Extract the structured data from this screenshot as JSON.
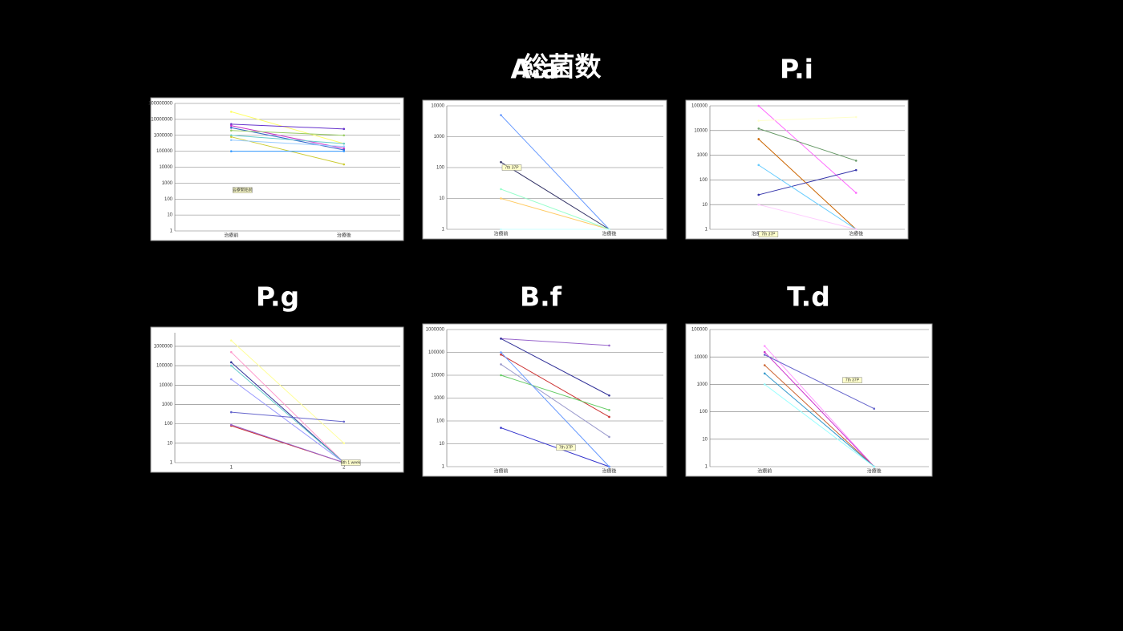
{
  "chart_data": [
    {
      "type": "line",
      "title": "総菌数",
      "log_scale": true,
      "grid": true,
      "categories": [
        "治療前",
        "治療後"
      ],
      "ylim": [
        1,
        100000000
      ],
      "yticks": [
        1,
        10,
        100,
        1000,
        10000,
        100000,
        1000000,
        10000000,
        100000000
      ],
      "annotation": "治療開始前",
      "series": [
        {
          "color": "#ffff66",
          "values": [
            30000000,
            300000
          ]
        },
        {
          "color": "#6633cc",
          "values": [
            5000000,
            2500000
          ]
        },
        {
          "color": "#cc33cc",
          "values": [
            4000000,
            150000
          ]
        },
        {
          "color": "#3366cc",
          "values": [
            3000000,
            120000
          ]
        },
        {
          "color": "#66cccc",
          "values": [
            1000000,
            300000
          ]
        },
        {
          "color": "#cccc33",
          "values": [
            800000,
            15000
          ]
        },
        {
          "color": "#99ccff",
          "values": [
            500000,
            200000
          ]
        },
        {
          "color": "#99cc66",
          "values": [
            2000000,
            1000000
          ]
        },
        {
          "color": "#3399ff",
          "values": [
            100000,
            100000
          ]
        }
      ]
    },
    {
      "type": "line",
      "title": "A.a",
      "log_scale": true,
      "grid": true,
      "categories": [
        "治療前",
        "治療後"
      ],
      "ylim": [
        1,
        10000
      ],
      "yticks": [
        1,
        10,
        100,
        1000,
        10000
      ],
      "annotation": "7th 37P",
      "series": [
        {
          "color": "#6699ff",
          "values": [
            5000,
            1
          ]
        },
        {
          "color": "#333366",
          "values": [
            150,
            1
          ]
        },
        {
          "color": "#ffcc66",
          "values": [
            10,
            1
          ]
        },
        {
          "color": "#99ffcc",
          "values": [
            20,
            1
          ]
        },
        {
          "color": "#ccffff",
          "values": [
            1,
            1
          ]
        }
      ]
    },
    {
      "type": "line",
      "title": "P.i",
      "log_scale": true,
      "grid": true,
      "categories": [
        "治療前",
        "治療後"
      ],
      "ylim": [
        1,
        100000
      ],
      "yticks": [
        1,
        10,
        100,
        1000,
        10000,
        100000
      ],
      "annotation": "7th 37P",
      "series": [
        {
          "color": "#ff66ff",
          "values": [
            100000,
            30
          ]
        },
        {
          "color": "#669966",
          "values": [
            12000,
            600
          ]
        },
        {
          "color": "#cc6600",
          "values": [
            4500,
            1
          ]
        },
        {
          "color": "#3333aa",
          "values": [
            25,
            250
          ]
        },
        {
          "color": "#66ccff",
          "values": [
            400,
            1
          ]
        },
        {
          "color": "#ffccff",
          "values": [
            10,
            1
          ]
        },
        {
          "color": "#ffffcc",
          "values": [
            25000,
            35000
          ]
        }
      ]
    },
    {
      "type": "line",
      "title": "P.g",
      "log_scale": true,
      "grid": true,
      "categories": [
        "1",
        "2"
      ],
      "ylim": [
        1,
        5000000
      ],
      "yticks": [
        1,
        10,
        100,
        1000,
        10000,
        100000,
        1000000
      ],
      "annotation": "8th 1 week",
      "series": [
        {
          "color": "#ffff99",
          "values": [
            2000000,
            10
          ]
        },
        {
          "color": "#ff99cc",
          "values": [
            500000,
            1
          ]
        },
        {
          "color": "#333399",
          "values": [
            150000,
            1
          ]
        },
        {
          "color": "#66cccc",
          "values": [
            100000,
            1
          ]
        },
        {
          "color": "#9999ff",
          "values": [
            20000,
            1
          ]
        },
        {
          "color": "#6666cc",
          "values": [
            400,
            130
          ]
        },
        {
          "color": "#cc3333",
          "values": [
            80,
            1
          ]
        },
        {
          "color": "#9966cc",
          "values": [
            90,
            1
          ]
        }
      ]
    },
    {
      "type": "line",
      "title": "B.f",
      "log_scale": true,
      "grid": true,
      "categories": [
        "治療前",
        "治療後"
      ],
      "ylim": [
        1,
        1000000
      ],
      "yticks": [
        1,
        10,
        100,
        1000,
        10000,
        100000,
        1000000
      ],
      "annotation": "7th 37P",
      "series": [
        {
          "color": "#9966cc",
          "values": [
            400000,
            200000
          ]
        },
        {
          "color": "#333399",
          "values": [
            400000,
            1300
          ]
        },
        {
          "color": "#cc3333",
          "values": [
            80000,
            150
          ]
        },
        {
          "color": "#9999cc",
          "values": [
            30000,
            20
          ]
        },
        {
          "color": "#66cc66",
          "values": [
            10000,
            300
          ]
        },
        {
          "color": "#3333cc",
          "values": [
            50,
            1
          ]
        },
        {
          "color": "#6699ff",
          "values": [
            100000,
            1
          ]
        }
      ]
    },
    {
      "type": "line",
      "title": "T.d",
      "log_scale": true,
      "grid": true,
      "categories": [
        "治療前",
        "治療後"
      ],
      "ylim": [
        1,
        100000
      ],
      "yticks": [
        1,
        10,
        100,
        1000,
        10000,
        100000
      ],
      "annotation": "7th 37P",
      "series": [
        {
          "color": "#ff99ff",
          "values": [
            25000,
            1
          ]
        },
        {
          "color": "#cc33cc",
          "values": [
            15000,
            1
          ]
        },
        {
          "color": "#6666cc",
          "values": [
            12000,
            130
          ]
        },
        {
          "color": "#cc6633",
          "values": [
            5000,
            1
          ]
        },
        {
          "color": "#3399cc",
          "values": [
            2500,
            1
          ]
        },
        {
          "color": "#99ffff",
          "values": [
            1000,
            1
          ]
        }
      ]
    }
  ]
}
